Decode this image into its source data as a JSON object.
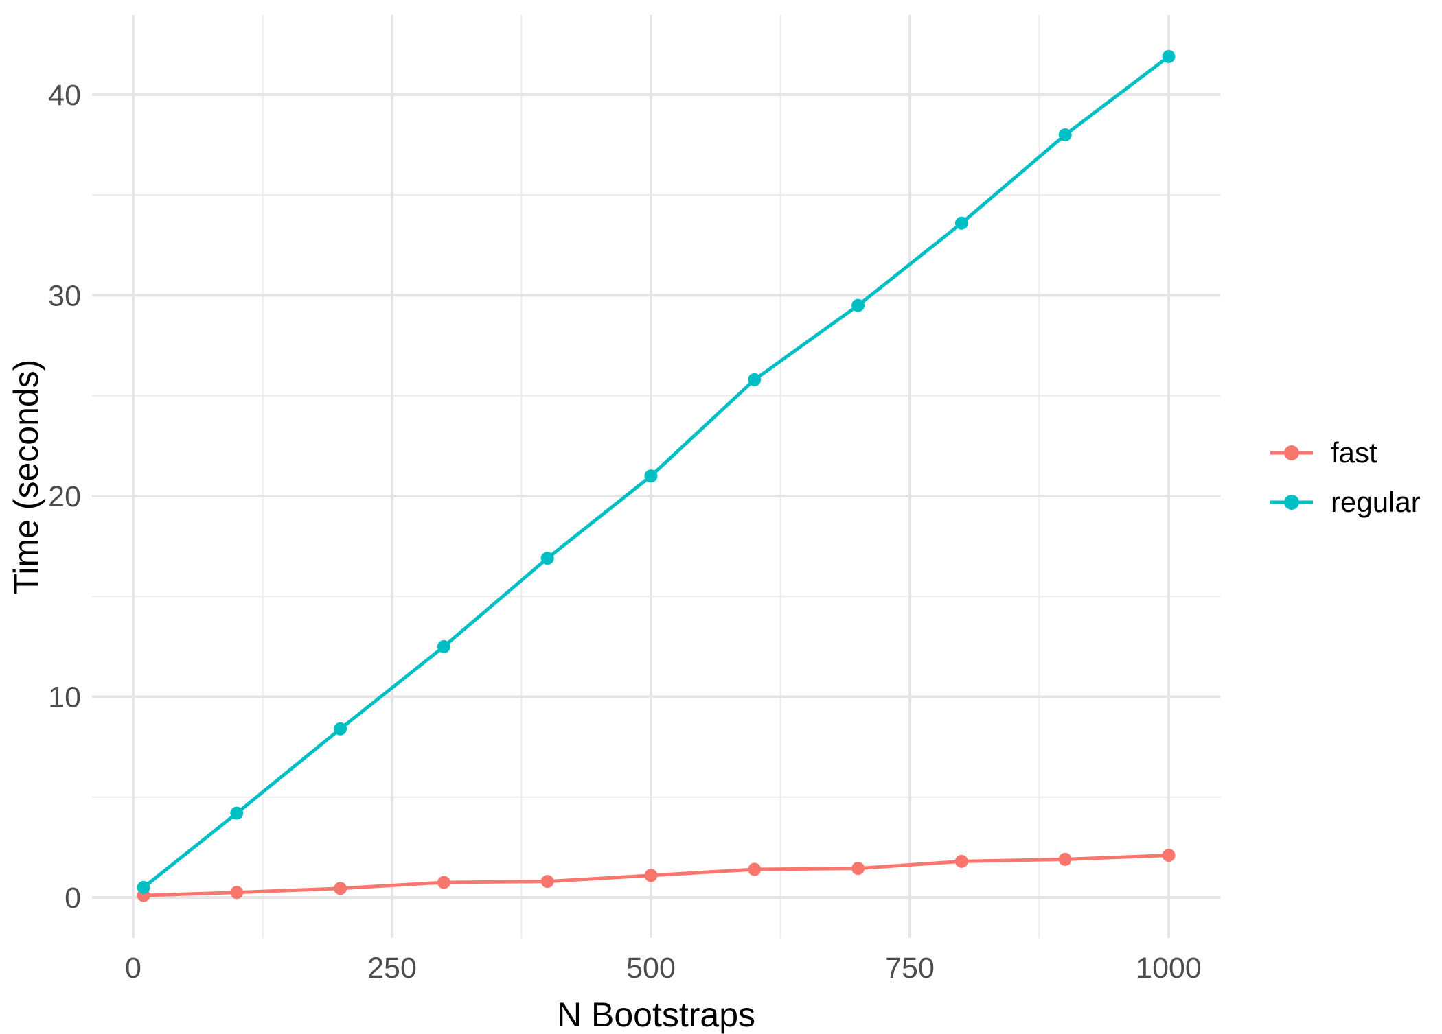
{
  "chart_data": {
    "type": "line",
    "title": "",
    "xlabel": "N Bootstraps",
    "ylabel": "Time (seconds)",
    "x": [
      10,
      100,
      200,
      300,
      400,
      500,
      600,
      700,
      800,
      900,
      1000
    ],
    "series": [
      {
        "name": "fast",
        "color": "#F8766D",
        "values": [
          0.1,
          0.25,
          0.45,
          0.75,
          0.8,
          1.1,
          1.4,
          1.45,
          1.8,
          1.9,
          2.1
        ]
      },
      {
        "name": "regular",
        "color": "#00BFC4",
        "values": [
          0.5,
          4.2,
          8.4,
          12.5,
          16.9,
          21.0,
          25.8,
          29.5,
          33.6,
          38.0,
          41.9
        ]
      }
    ],
    "x_ticks": [
      0,
      250,
      500,
      750,
      1000
    ],
    "y_ticks": [
      0,
      10,
      20,
      30,
      40
    ],
    "x_minor_ticks": [
      125,
      375,
      625,
      875
    ],
    "y_minor_ticks": [
      5,
      15,
      25,
      35
    ],
    "xlim": [
      -40,
      1050
    ],
    "ylim": [
      -2.1,
      44
    ],
    "grid": "on",
    "legend_position": "right"
  },
  "axes": {
    "x_title": "N Bootstraps",
    "y_title": "Time (seconds)",
    "x_tick_labels": [
      "0",
      "250",
      "500",
      "750",
      "1000"
    ],
    "y_tick_labels": [
      "0",
      "10",
      "20",
      "30",
      "40"
    ]
  },
  "legend": {
    "items": [
      {
        "label": "fast",
        "color": "#F8766D"
      },
      {
        "label": "regular",
        "color": "#00BFC4"
      }
    ]
  },
  "colors": {
    "background": "#FFFFFF",
    "grid_major": "#E5E5E5",
    "grid_minor": "#EBEBEB",
    "tick_label": "#4D4D4D",
    "axis_title": "#000000"
  }
}
